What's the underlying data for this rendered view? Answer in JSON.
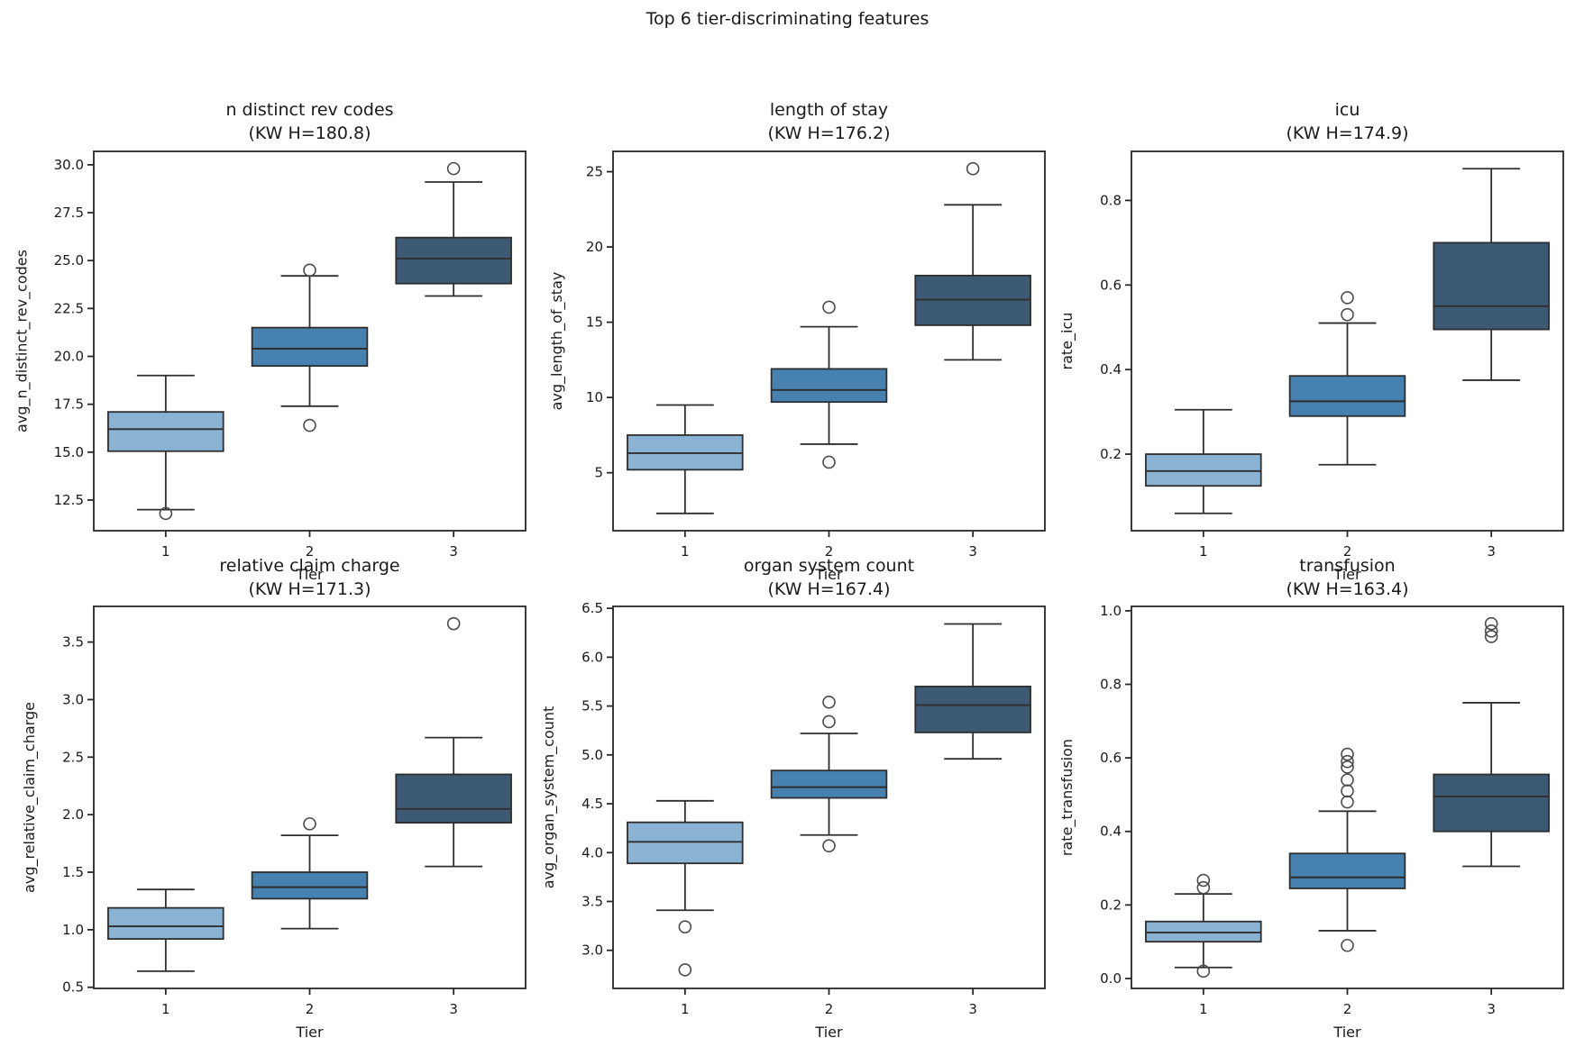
{
  "figure": {
    "title": "Top 6 tier-discriminating features",
    "background": "#ffffff"
  },
  "palette": {
    "tier_colors": [
      "#8ab2d2",
      "#4781af",
      "#3c5a73"
    ],
    "edge_color": "#2e2e2e",
    "flier_edge_color": "#4a4a4a",
    "text_color": "#1a1a1a",
    "spine_color": "#262626"
  },
  "chart_data": [
    {
      "type": "box",
      "title": "n distinct rev codes",
      "subtitle": "(KW H=180.8)",
      "kw_h": 180.8,
      "xlabel": "Tier",
      "ylabel": "avg_n_distinct_rev_codes",
      "categories": [
        "1",
        "2",
        "3"
      ],
      "ytick_labels": [
        "12.5",
        "15.0",
        "17.5",
        "20.0",
        "22.5",
        "25.0",
        "27.5",
        "30.0"
      ],
      "yticks": [
        12.5,
        15.0,
        17.5,
        20.0,
        22.5,
        25.0,
        27.5,
        30.0
      ],
      "ylim": [
        10.9,
        30.7
      ],
      "grid": false,
      "boxes": [
        {
          "tier": "1",
          "whislo": 12.0,
          "q1": 15.05,
          "med": 16.2,
          "q3": 17.1,
          "whishi": 19.0,
          "outliers": [
            11.8
          ]
        },
        {
          "tier": "2",
          "whislo": 17.4,
          "q1": 19.5,
          "med": 20.4,
          "q3": 21.5,
          "whishi": 24.2,
          "outliers": [
            16.4,
            24.5
          ]
        },
        {
          "tier": "3",
          "whislo": 23.15,
          "q1": 23.8,
          "med": 25.1,
          "q3": 26.2,
          "whishi": 29.1,
          "outliers": [
            29.8
          ]
        }
      ]
    },
    {
      "type": "box",
      "title": "length of stay",
      "subtitle": "(KW H=176.2)",
      "kw_h": 176.2,
      "xlabel": "Tier",
      "ylabel": "avg_length_of_stay",
      "categories": [
        "1",
        "2",
        "3"
      ],
      "ytick_labels": [
        "5",
        "10",
        "15",
        "20",
        "25"
      ],
      "yticks": [
        5,
        10,
        15,
        20,
        25
      ],
      "ylim": [
        1.15,
        26.35
      ],
      "grid": false,
      "boxes": [
        {
          "tier": "1",
          "whislo": 2.3,
          "q1": 5.2,
          "med": 6.3,
          "q3": 7.5,
          "whishi": 9.5,
          "outliers": []
        },
        {
          "tier": "2",
          "whislo": 6.9,
          "q1": 9.7,
          "med": 10.5,
          "q3": 11.9,
          "whishi": 14.7,
          "outliers": [
            5.7,
            16.0
          ]
        },
        {
          "tier": "3",
          "whislo": 12.5,
          "q1": 14.8,
          "med": 16.5,
          "q3": 18.1,
          "whishi": 22.8,
          "outliers": [
            25.2
          ]
        }
      ]
    },
    {
      "type": "box",
      "title": "icu",
      "subtitle": "(KW H=174.9)",
      "kw_h": 174.9,
      "xlabel": "Tier",
      "ylabel": "rate_icu",
      "categories": [
        "1",
        "2",
        "3"
      ],
      "ytick_labels": [
        "0.2",
        "0.4",
        "0.6",
        "0.8"
      ],
      "yticks": [
        0.2,
        0.4,
        0.6,
        0.8
      ],
      "ylim": [
        0.019,
        0.916
      ],
      "grid": false,
      "boxes": [
        {
          "tier": "1",
          "whislo": 0.06,
          "q1": 0.125,
          "med": 0.16,
          "q3": 0.2,
          "whishi": 0.305,
          "outliers": []
        },
        {
          "tier": "2",
          "whislo": 0.175,
          "q1": 0.29,
          "med": 0.325,
          "q3": 0.385,
          "whishi": 0.51,
          "outliers": [
            0.53,
            0.57
          ]
        },
        {
          "tier": "3",
          "whislo": 0.375,
          "q1": 0.495,
          "med": 0.55,
          "q3": 0.7,
          "whishi": 0.875,
          "outliers": []
        }
      ]
    },
    {
      "type": "box",
      "title": "relative claim charge",
      "subtitle": "(KW H=171.3)",
      "kw_h": 171.3,
      "xlabel": "Tier",
      "ylabel": "avg_relative_claim_charge",
      "categories": [
        "1",
        "2",
        "3"
      ],
      "ytick_labels": [
        "0.5",
        "1.0",
        "1.5",
        "2.0",
        "2.5",
        "3.0",
        "3.5"
      ],
      "yticks": [
        0.5,
        1.0,
        1.5,
        2.0,
        2.5,
        3.0,
        3.5
      ],
      "ylim": [
        0.49,
        3.81
      ],
      "grid": false,
      "boxes": [
        {
          "tier": "1",
          "whislo": 0.64,
          "q1": 0.92,
          "med": 1.03,
          "q3": 1.19,
          "whishi": 1.35,
          "outliers": []
        },
        {
          "tier": "2",
          "whislo": 1.01,
          "q1": 1.27,
          "med": 1.37,
          "q3": 1.5,
          "whishi": 1.82,
          "outliers": [
            1.92
          ]
        },
        {
          "tier": "3",
          "whislo": 1.55,
          "q1": 1.93,
          "med": 2.05,
          "q3": 2.35,
          "whishi": 2.67,
          "outliers": [
            3.66
          ]
        }
      ]
    },
    {
      "type": "box",
      "title": "organ system count",
      "subtitle": "(KW H=167.4)",
      "kw_h": 167.4,
      "xlabel": "Tier",
      "ylabel": "avg_organ_system_count",
      "categories": [
        "1",
        "2",
        "3"
      ],
      "ytick_labels": [
        "3.0",
        "3.5",
        "4.0",
        "4.5",
        "5.0",
        "5.5",
        "6.0",
        "6.5"
      ],
      "yticks": [
        3.0,
        3.5,
        4.0,
        4.5,
        5.0,
        5.5,
        6.0,
        6.5
      ],
      "ylim": [
        2.61,
        6.52
      ],
      "grid": false,
      "boxes": [
        {
          "tier": "1",
          "whislo": 3.41,
          "q1": 3.89,
          "med": 4.11,
          "q3": 4.31,
          "whishi": 4.53,
          "outliers": [
            2.8,
            3.24
          ]
        },
        {
          "tier": "2",
          "whislo": 4.18,
          "q1": 4.56,
          "med": 4.67,
          "q3": 4.84,
          "whishi": 5.22,
          "outliers": [
            4.07,
            5.34,
            5.54
          ]
        },
        {
          "tier": "3",
          "whislo": 4.96,
          "q1": 5.23,
          "med": 5.51,
          "q3": 5.7,
          "whishi": 6.34,
          "outliers": []
        }
      ]
    },
    {
      "type": "box",
      "title": "transfusion",
      "subtitle": "(KW H=163.4)",
      "kw_h": 163.4,
      "xlabel": "Tier",
      "ylabel": "rate_transfusion",
      "categories": [
        "1",
        "2",
        "3"
      ],
      "ytick_labels": [
        "0.0",
        "0.2",
        "0.4",
        "0.6",
        "0.8",
        "1.0"
      ],
      "yticks": [
        0.0,
        0.2,
        0.4,
        0.6,
        0.8,
        1.0
      ],
      "ylim": [
        -0.027,
        1.012
      ],
      "grid": false,
      "boxes": [
        {
          "tier": "1",
          "whislo": 0.03,
          "q1": 0.1,
          "med": 0.125,
          "q3": 0.155,
          "whishi": 0.23,
          "outliers": [
            0.02,
            0.247,
            0.267
          ]
        },
        {
          "tier": "2",
          "whislo": 0.13,
          "q1": 0.245,
          "med": 0.275,
          "q3": 0.34,
          "whishi": 0.455,
          "outliers": [
            0.09,
            0.48,
            0.51,
            0.54,
            0.575,
            0.59,
            0.61
          ]
        },
        {
          "tier": "3",
          "whislo": 0.305,
          "q1": 0.4,
          "med": 0.495,
          "q3": 0.555,
          "whishi": 0.75,
          "outliers": [
            0.93,
            0.945,
            0.965
          ]
        }
      ]
    }
  ]
}
